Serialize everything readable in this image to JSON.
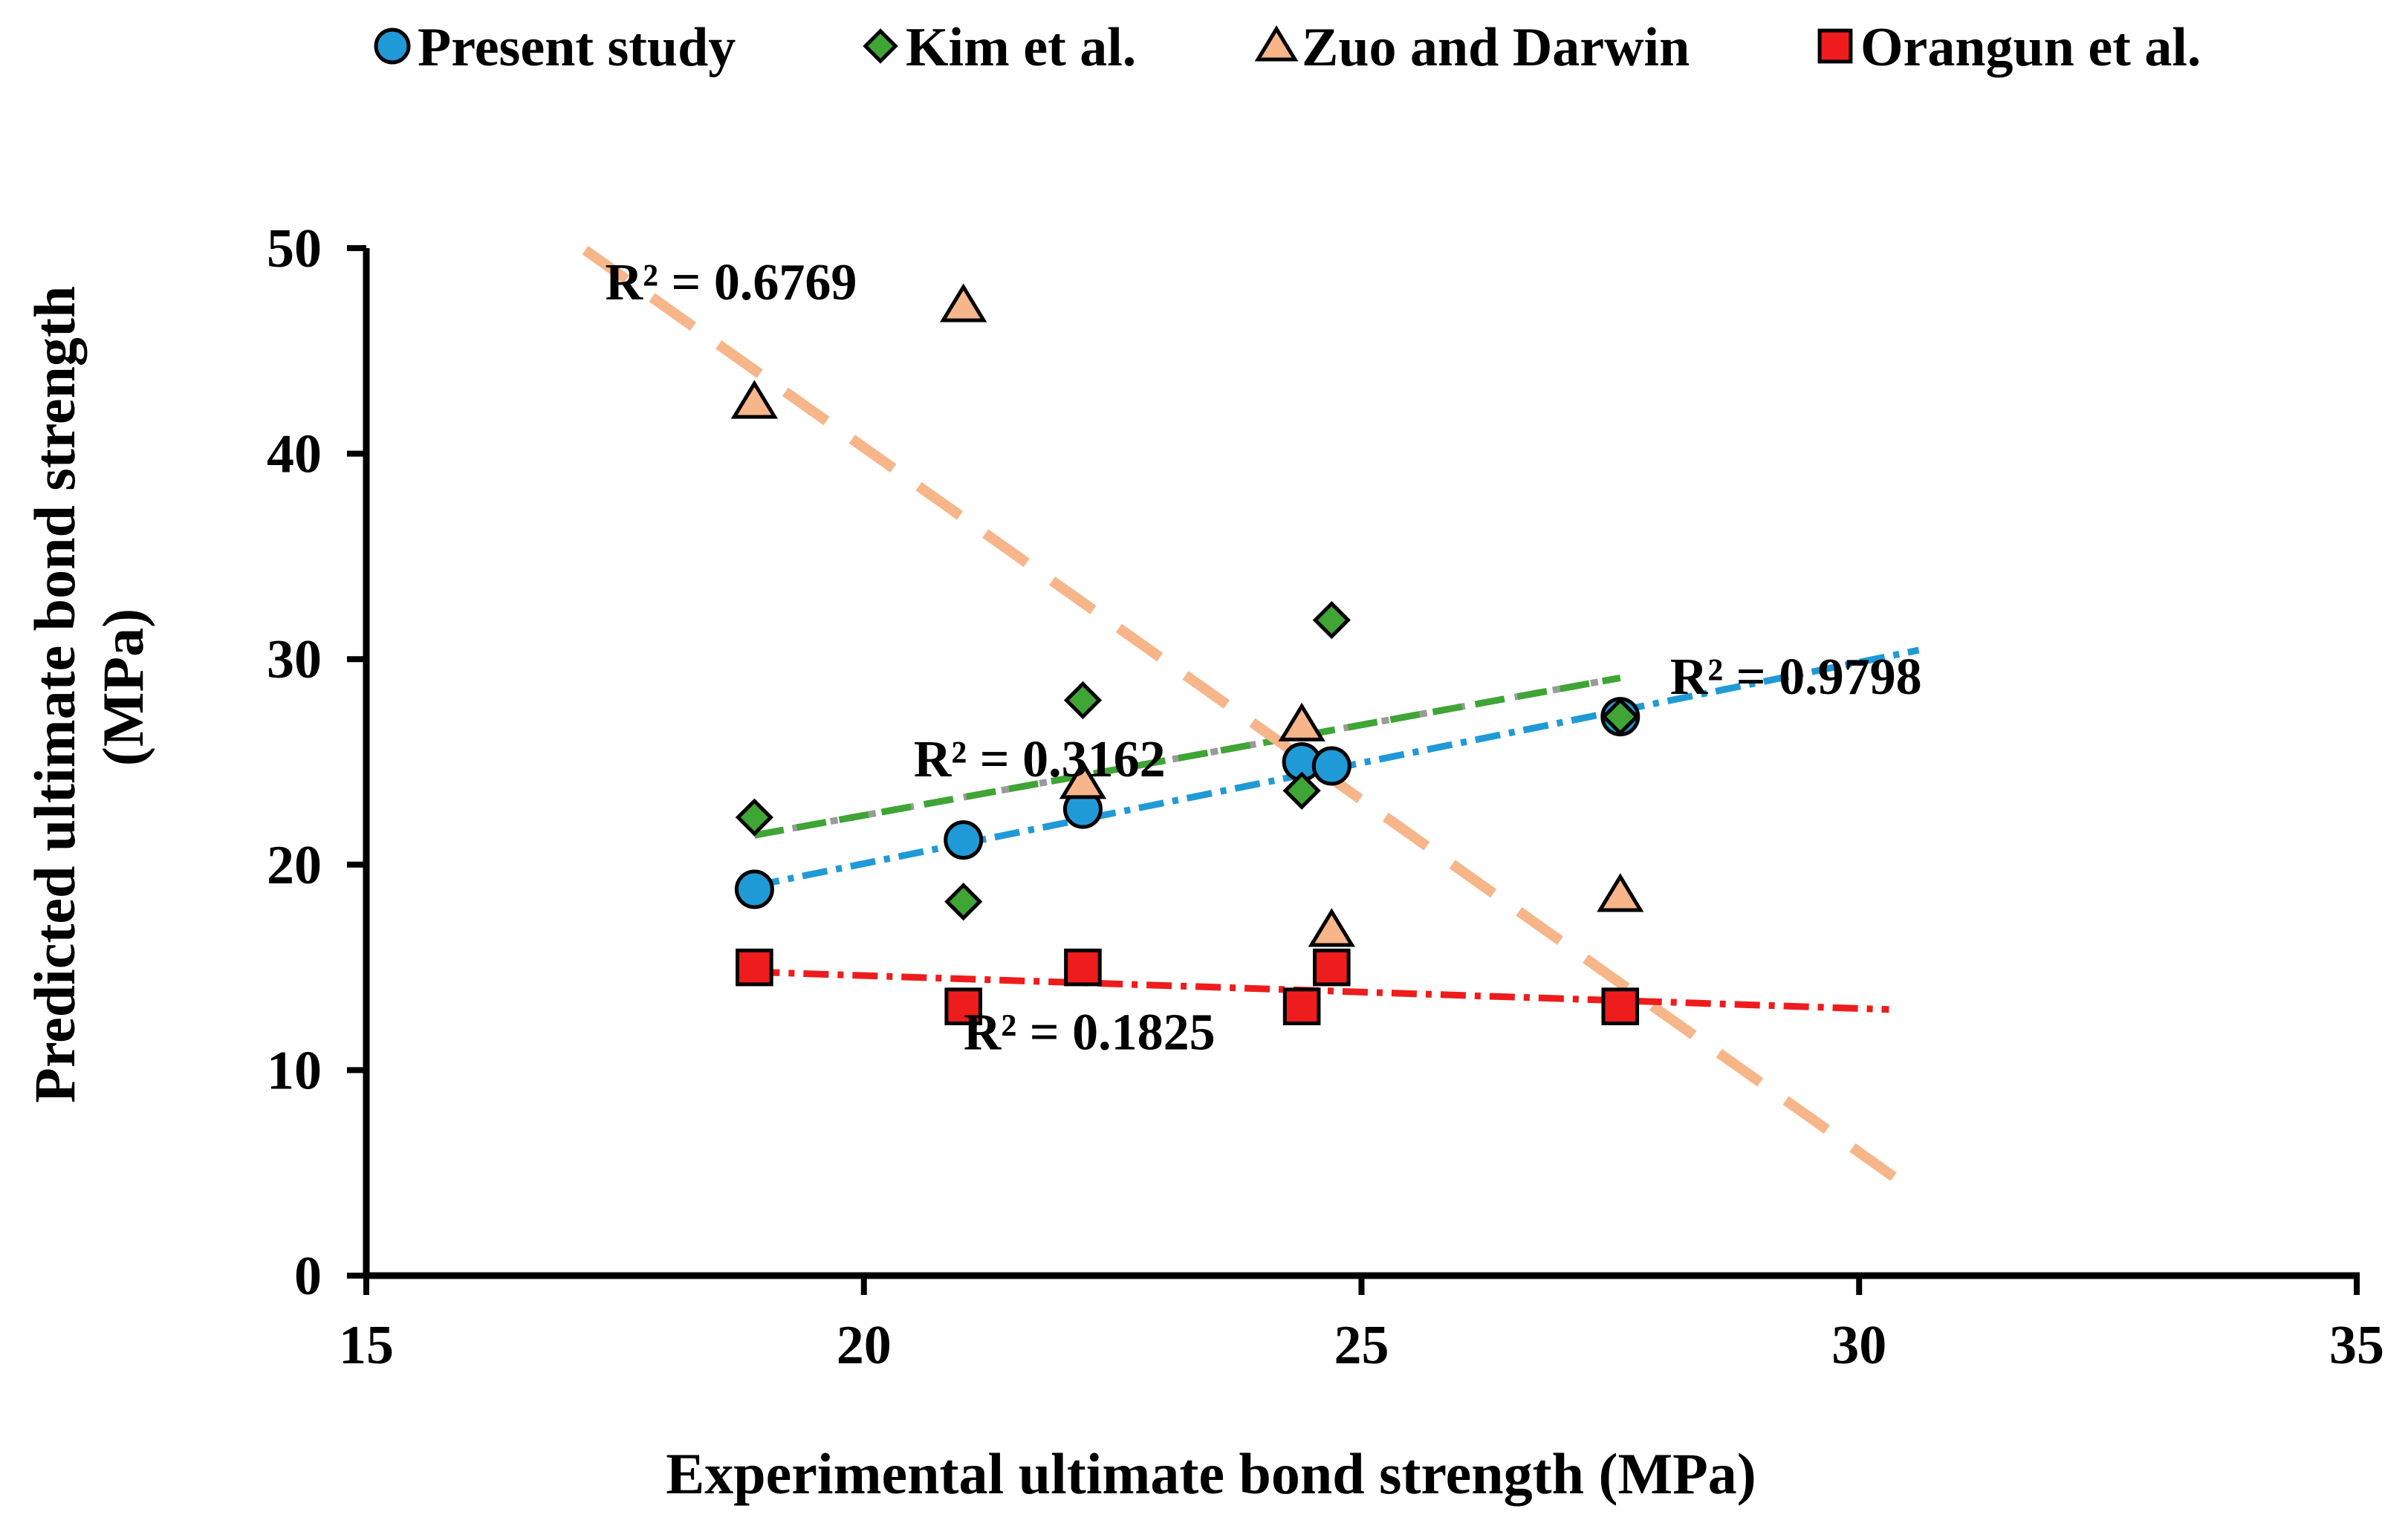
{
  "chart_data": {
    "type": "scatter",
    "title": "",
    "xlabel": "Experimental ultimate bond strength (MPa)",
    "ylabel_lines": [
      "Predicted ultimate bond strength",
      "(MPa)"
    ],
    "xlim": [
      15,
      35
    ],
    "ylim": [
      0,
      50
    ],
    "xticks": [
      15,
      20,
      25,
      30,
      35
    ],
    "yticks": [
      0,
      10,
      20,
      30,
      40,
      50
    ],
    "legend_position": "top",
    "series": [
      {
        "name": "Present study",
        "marker": "circle",
        "color": "#1f9ad6",
        "points": [
          [
            18.9,
            18.8
          ],
          [
            21.0,
            21.2
          ],
          [
            22.2,
            22.7
          ],
          [
            24.4,
            25.0
          ],
          [
            24.7,
            24.8
          ],
          [
            27.6,
            27.2
          ]
        ],
        "trend": {
          "x0": 18.9,
          "x1": 30.6,
          "slope": 0.98,
          "intercept": 0.45,
          "style": "dashdot",
          "color": "#1f9ad6",
          "r2_label": "R² = 0.9798"
        }
      },
      {
        "name": "Kim et al.",
        "marker": "diamond",
        "color": "#3fa535",
        "points": [
          [
            18.9,
            22.3
          ],
          [
            21.0,
            18.2
          ],
          [
            22.2,
            28.0
          ],
          [
            24.4,
            23.6
          ],
          [
            24.7,
            31.9
          ],
          [
            27.6,
            27.2
          ]
        ],
        "trend": {
          "x0": 18.9,
          "x1": 27.6,
          "slope": 0.88,
          "intercept": 4.8,
          "style": "dash",
          "color": "#3fa535",
          "r2_label": "R² = 0.3162"
        }
      },
      {
        "name": "Zuo and Darwin",
        "marker": "triangle",
        "color": "#f7b58a",
        "points": [
          [
            18.9,
            42.5
          ],
          [
            21.0,
            47.2
          ],
          [
            22.2,
            24.0
          ],
          [
            24.4,
            26.8
          ],
          [
            24.7,
            16.8
          ],
          [
            27.6,
            18.5
          ]
        ],
        "trend": {
          "x0": 17.2,
          "x1": 30.6,
          "slope": -3.43,
          "intercept": 108.9,
          "style": "longdash",
          "color": "#f7b58a",
          "r2_label": "R² = 0.6769"
        }
      },
      {
        "name": "Orangun et al.",
        "marker": "square",
        "color": "#ee1c1c",
        "points": [
          [
            18.9,
            15.0
          ],
          [
            21.0,
            13.1
          ],
          [
            22.2,
            15.0
          ],
          [
            24.4,
            13.1
          ],
          [
            24.7,
            15.0
          ],
          [
            27.6,
            13.1
          ]
        ],
        "trend": {
          "x0": 18.9,
          "x1": 30.3,
          "slope": -0.16,
          "intercept": 17.8,
          "style": "dashdot",
          "color": "#ee1c1c",
          "r2_label": "R² = 0.1825"
        }
      }
    ],
    "r2_annotations": [
      {
        "text": "R² = 0.6769",
        "x": 17.4,
        "y": 47.5
      },
      {
        "text": "R² = 0.3162",
        "x": 20.5,
        "y": 24.3
      },
      {
        "text": "R² = 0.9798",
        "x": 28.1,
        "y": 28.3
      },
      {
        "text": "R² = 0.1825",
        "x": 21.0,
        "y": 11.0
      }
    ]
  }
}
